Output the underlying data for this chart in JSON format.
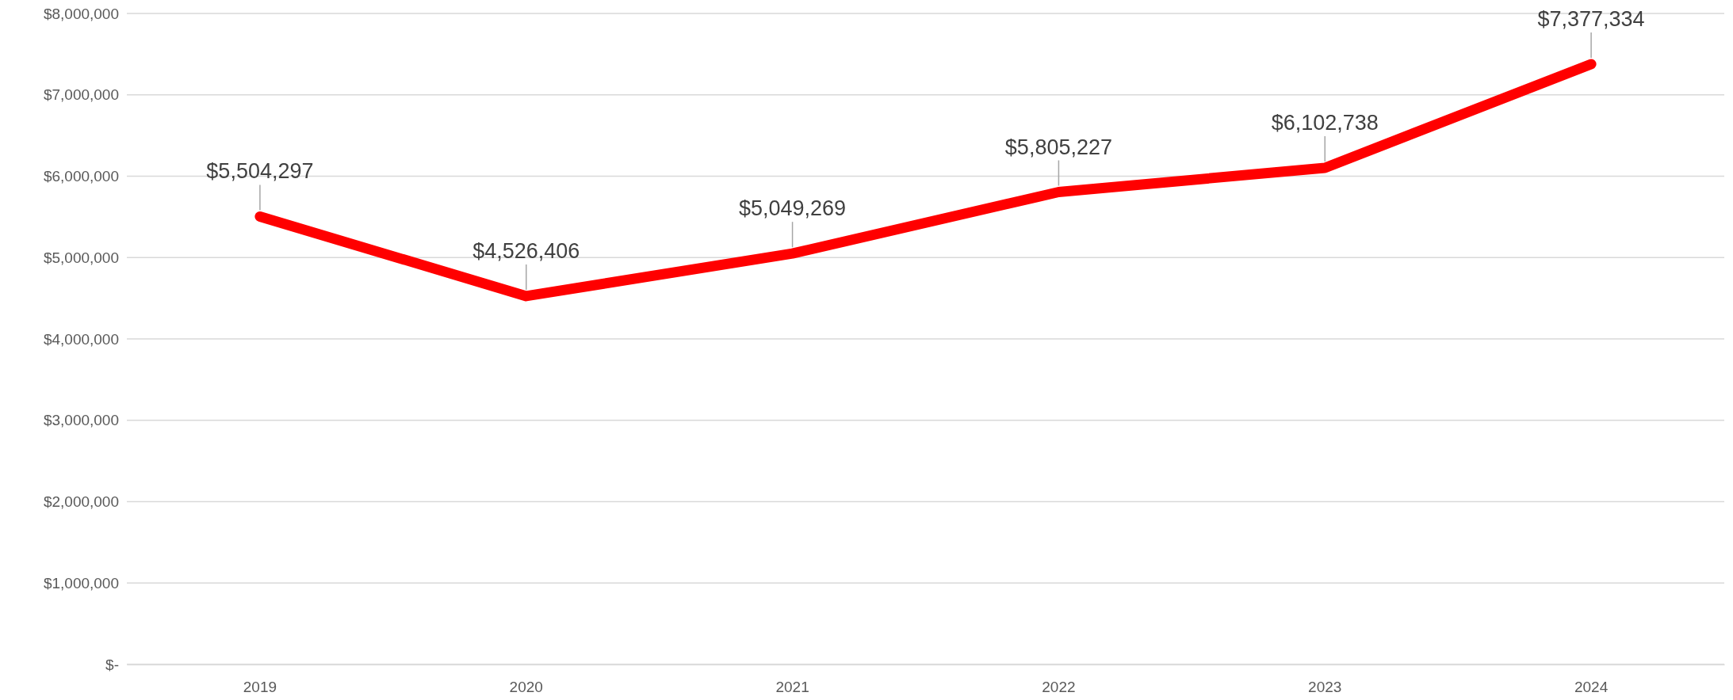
{
  "chart_data": {
    "type": "line",
    "categories": [
      "2019",
      "2020",
      "2021",
      "2022",
      "2023",
      "2024"
    ],
    "series": [
      {
        "color": "#ff0000",
        "values": [
          5504297,
          4526406,
          5049269,
          5805227,
          6102738,
          7377334
        ],
        "value_labels": [
          "$5,504,297",
          "$4,526,406",
          "$5,049,269",
          "$5,805,227",
          "$6,102,738",
          "$7,377,334"
        ]
      }
    ],
    "ylim": [
      0,
      8000000
    ],
    "yticks": [
      {
        "value": 0,
        "label": "$-"
      },
      {
        "value": 1000000,
        "label": "$1,000,000"
      },
      {
        "value": 2000000,
        "label": "$2,000,000"
      },
      {
        "value": 3000000,
        "label": "$3,000,000"
      },
      {
        "value": 4000000,
        "label": "$4,000,000"
      },
      {
        "value": 5000000,
        "label": "$5,000,000"
      },
      {
        "value": 6000000,
        "label": "$6,000,000"
      },
      {
        "value": 7000000,
        "label": "$7,000,000"
      },
      {
        "value": 8000000,
        "label": "$8,000,000"
      }
    ],
    "grid": "y",
    "marker": "none",
    "line_style": "solid"
  }
}
